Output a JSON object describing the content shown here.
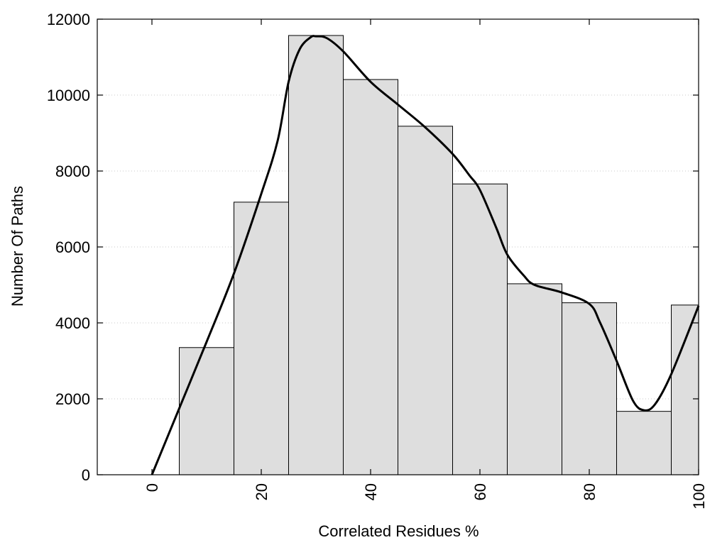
{
  "chart_data": {
    "type": "bar",
    "title": "",
    "xlabel": "Correlated Residues %",
    "ylabel": "Number Of Paths",
    "xlim": [
      -10,
      100
    ],
    "ylim": [
      0,
      12000
    ],
    "x_ticks": [
      0,
      20,
      40,
      60,
      80,
      100
    ],
    "y_ticks": [
      0,
      2000,
      4000,
      6000,
      8000,
      10000,
      12000
    ],
    "grid": "horizontal dotted",
    "legend": "none",
    "bin_width": 10,
    "bars": [
      {
        "x": 10,
        "value": 3350
      },
      {
        "x": 20,
        "value": 7180
      },
      {
        "x": 30,
        "value": 11570
      },
      {
        "x": 40,
        "value": 10410
      },
      {
        "x": 50,
        "value": 9180
      },
      {
        "x": 60,
        "value": 7660
      },
      {
        "x": 70,
        "value": 5030
      },
      {
        "x": 80,
        "value": 4530
      },
      {
        "x": 90,
        "value": 1670
      },
      {
        "x": 100,
        "value": 4470
      }
    ],
    "curve": {
      "x": [
        0,
        5,
        10,
        15,
        20,
        23,
        25,
        27,
        29,
        30,
        32,
        35,
        40,
        45,
        50,
        55,
        58,
        60,
        63,
        65,
        68,
        70,
        75,
        80,
        82,
        85,
        88,
        90,
        92,
        95,
        100
      ],
      "y": [
        0,
        1750,
        3500,
        5300,
        7400,
        8800,
        10350,
        11200,
        11520,
        11550,
        11500,
        11150,
        10350,
        9750,
        9150,
        8450,
        7900,
        7500,
        6500,
        5800,
        5250,
        5000,
        4800,
        4500,
        4000,
        3000,
        1950,
        1700,
        1850,
        2650,
        4450
      ]
    },
    "colors": {
      "bar_fill": "#dedede",
      "bar_stroke": "#000000",
      "curve": "#000000",
      "grid": "#c8c8c8"
    }
  }
}
